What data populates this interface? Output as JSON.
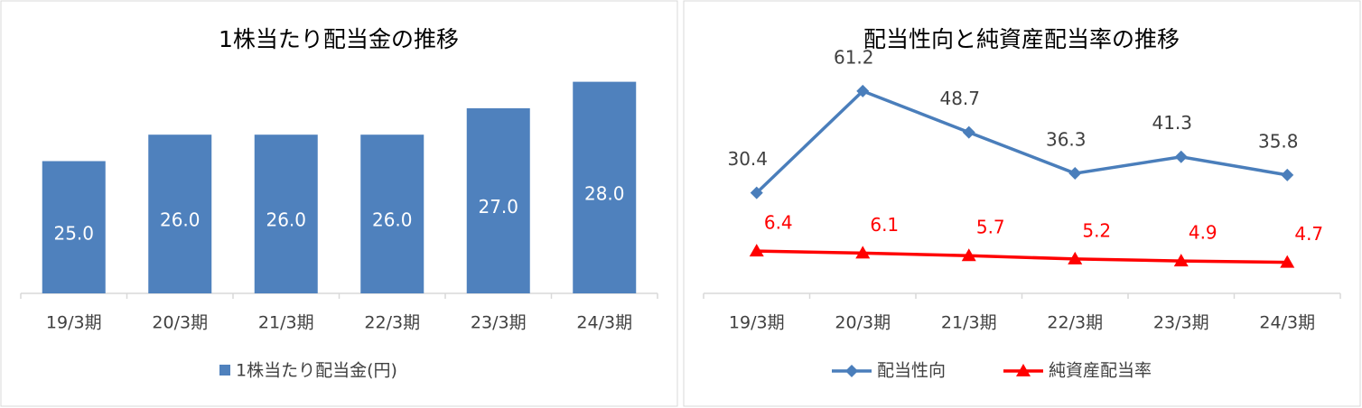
{
  "chart_data": [
    {
      "type": "bar",
      "title": "1株当たり配当金の推移",
      "categories": [
        "19/3期",
        "20/3期",
        "21/3期",
        "22/3期",
        "23/3期",
        "24/3期"
      ],
      "series": [
        {
          "name": "1株当たり配当金(円)",
          "color": "#4f81bd",
          "values": [
            25,
            26,
            26,
            26,
            27,
            28
          ],
          "value_labels": [
            "25.0",
            "26.0",
            "26.0",
            "26.0",
            "27.0",
            "28.0"
          ]
        }
      ],
      "ylim": [
        20,
        30
      ]
    },
    {
      "type": "line",
      "title": "配当性向と純資産配当率の推移",
      "categories": [
        "19/3期",
        "20/3期",
        "21/3期",
        "22/3期",
        "23/3期",
        "24/3期"
      ],
      "series": [
        {
          "name": "配当性向",
          "color": "#4a7ebb",
          "marker": "diamond",
          "values": [
            30.4,
            61.2,
            48.7,
            36.3,
            41.3,
            35.8
          ]
        },
        {
          "name": "純資産配当率",
          "color": "#ff0000",
          "marker": "triangle",
          "axis": "y2",
          "values": [
            6.4,
            6.1,
            5.7,
            5.2,
            4.9,
            4.7
          ]
        }
      ],
      "ylim": [
        0,
        80
      ],
      "y2lim": [
        0,
        40
      ]
    }
  ]
}
